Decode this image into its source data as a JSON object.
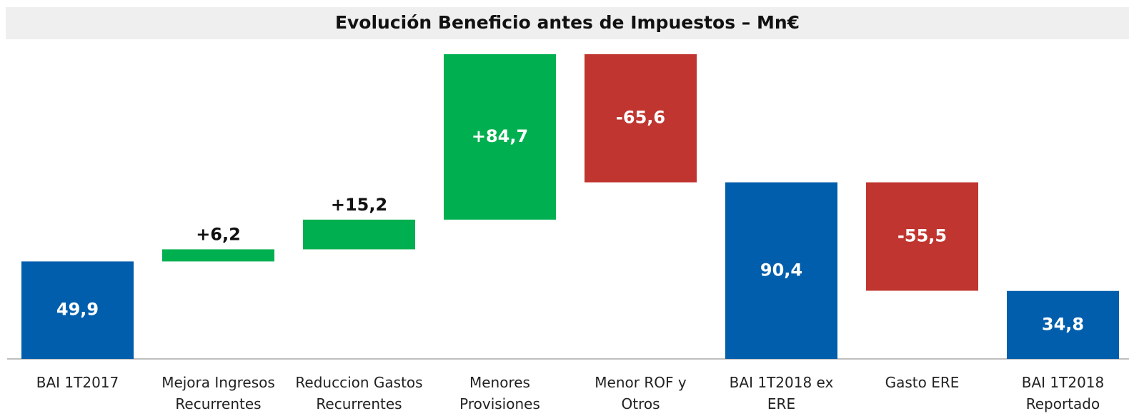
{
  "chart_data": {
    "type": "waterfall",
    "title": "Evolución Beneficio antes de Impuestos – Mn€",
    "categories": [
      "BAI 1T2017",
      "Mejora Ingresos\nRecurrentes",
      "Reduccion Gastos\nRecurrentes",
      "Menores\nProvisiones",
      "Menor ROF y\nOtros",
      "BAI 1T2018 ex\nERE",
      "Gasto ERE",
      "BAI 1T2018\nReportado"
    ],
    "values": [
      49.9,
      6.2,
      15.2,
      84.7,
      -65.6,
      90.4,
      -55.5,
      34.8
    ],
    "value_labels": [
      "49,9",
      "+6,2",
      "+15,2",
      "+84,7",
      "-65,6",
      "90,4",
      "-55,5",
      "34,8"
    ],
    "measure": [
      "absolute",
      "relative",
      "relative",
      "relative",
      "relative",
      "absolute",
      "relative",
      "absolute"
    ],
    "colors": {
      "absolute": "#005eac",
      "increase": "#00b050",
      "decrease": "#c0352f"
    },
    "ylim": [
      0,
      160
    ]
  }
}
